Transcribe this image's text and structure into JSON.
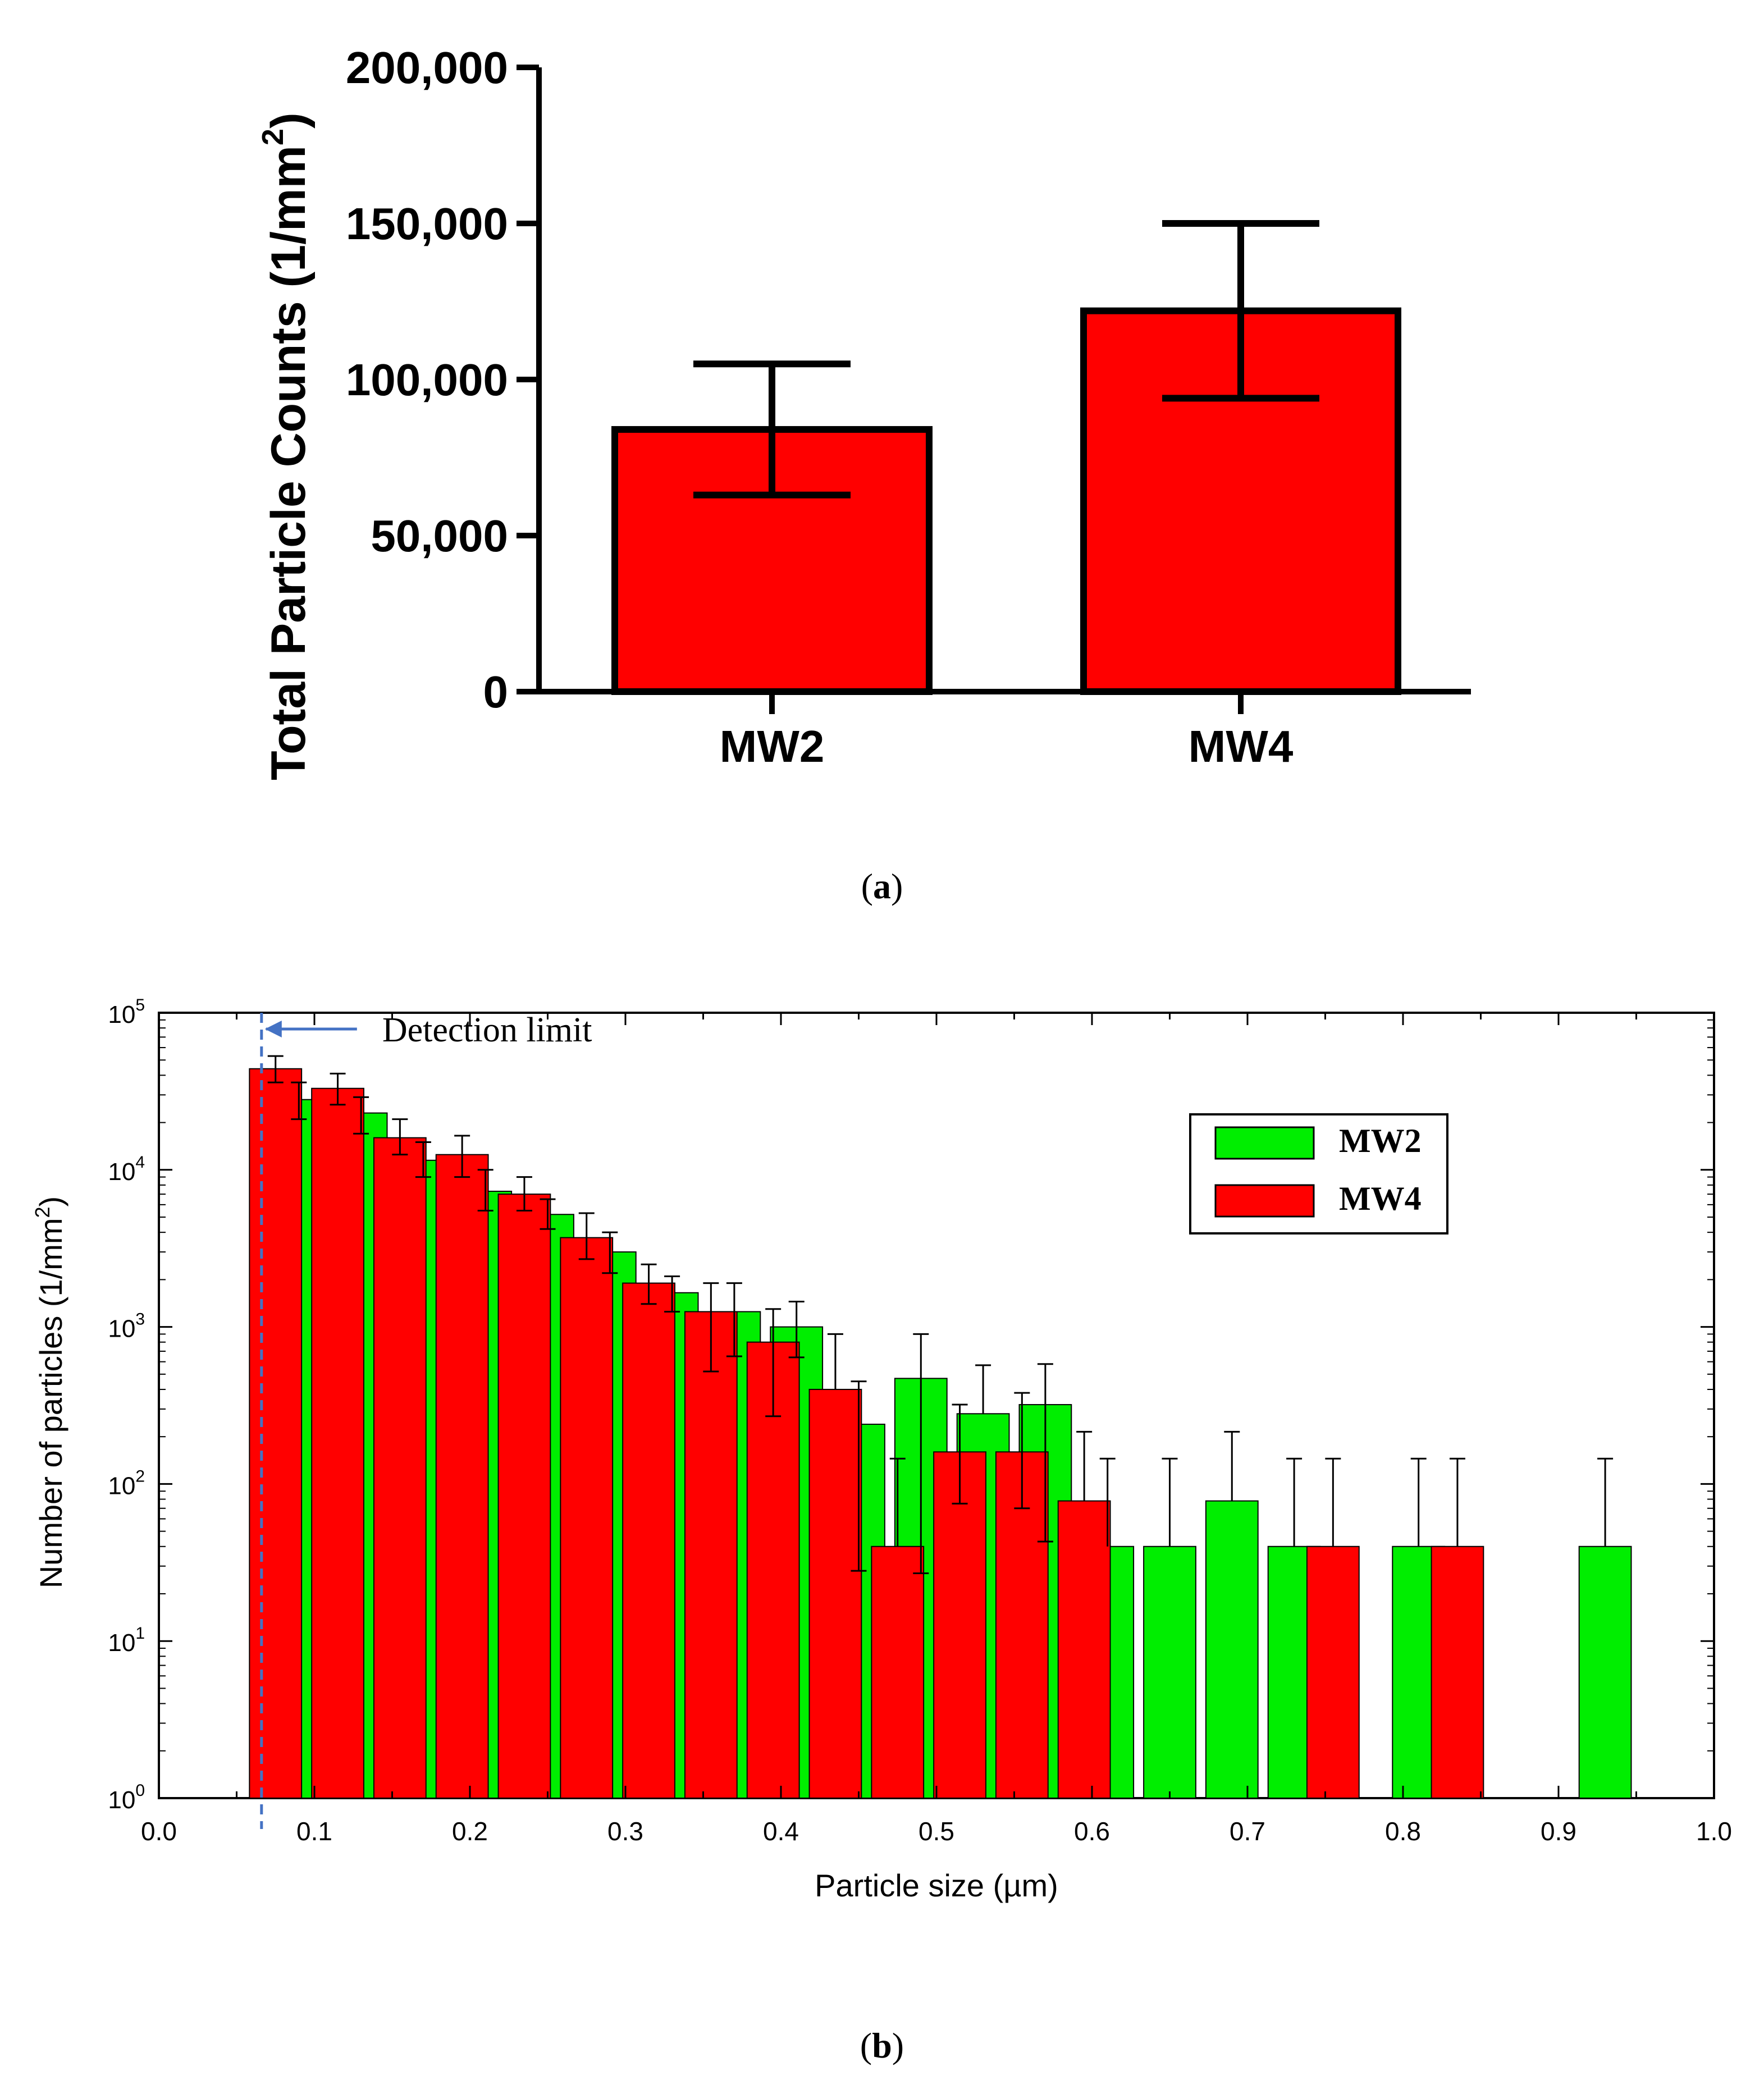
{
  "colors": {
    "mw2": "#00ee00",
    "mw4": "#ff0000",
    "axis": "#000000",
    "detection": "#4472c4"
  },
  "panel_a": {
    "caption": "(a)",
    "caption_letter": "a"
  },
  "panel_b": {
    "caption": "(b)",
    "caption_letter": "b",
    "annotation": "Detection limit"
  },
  "chart_data": [
    {
      "type": "bar",
      "title": "",
      "xlabel": "",
      "ylabel": "Total Particle Counts (1/mm2)",
      "ylabel_main": "Total Particle Counts (1/mm",
      "ylabel_sup": "2",
      "ylabel_close": ")",
      "categories": [
        "MW2",
        "MW4"
      ],
      "values": [
        84000,
        122000
      ],
      "errors": [
        21000,
        28000
      ],
      "ylim": [
        0,
        200000
      ],
      "yticks": [
        0,
        50000,
        100000,
        150000,
        200000
      ],
      "ytick_labels": [
        "0",
        "50,000",
        "100,000",
        "150,000",
        "200,000"
      ],
      "grid": false
    },
    {
      "type": "bar",
      "title": "",
      "xlabel": "Particle size (µm)",
      "ylabel": "Number of particles (1/mm2)",
      "ylabel_main": "Number of particles (1/mm",
      "ylabel_sup": "2",
      "ylabel_close": ")",
      "yscale": "log",
      "xlim": [
        0.0,
        1.0
      ],
      "ylim": [
        1,
        100000
      ],
      "xticks": [
        0.0,
        0.1,
        0.2,
        0.3,
        0.4,
        0.5,
        0.6,
        0.7,
        0.8,
        0.9,
        1.0
      ],
      "xtick_labels": [
        "0.0",
        "0.1",
        "0.2",
        "0.3",
        "0.4",
        "0.5",
        "0.6",
        "0.7",
        "0.8",
        "0.9",
        "1.0"
      ],
      "ytick_base": "10",
      "ytick_exponents": [
        "0",
        "1",
        "2",
        "3",
        "4",
        "5"
      ],
      "detection_limit": 0.066,
      "legend": {
        "position": "top-right",
        "entries": [
          "MW2",
          "MW4"
        ]
      },
      "series": [
        {
          "name": "MW2",
          "x": [
            0.09,
            0.13,
            0.17,
            0.21,
            0.25,
            0.29,
            0.33,
            0.37,
            0.41,
            0.45,
            0.49,
            0.53,
            0.57,
            0.61,
            0.65,
            0.69,
            0.73,
            0.81,
            0.93
          ],
          "values": [
            28000,
            23000,
            11500,
            7300,
            5200,
            3000,
            1650,
            1250,
            1000,
            240,
            470,
            280,
            320,
            40,
            40,
            78,
            40,
            40,
            40
          ],
          "err_low": [
            21000,
            17000,
            9000,
            5500,
            4200,
            2200,
            1250,
            650,
            640,
            28,
            27,
            null,
            43,
            null,
            null,
            null,
            null,
            null,
            null
          ],
          "err_high": [
            36000,
            29000,
            15000,
            10000,
            6500,
            4000,
            2100,
            1900,
            1450,
            450,
            900,
            570,
            580,
            145,
            145,
            215,
            145,
            145,
            145
          ]
        },
        {
          "name": "MW4",
          "x": [
            0.075,
            0.115,
            0.155,
            0.195,
            0.235,
            0.275,
            0.315,
            0.355,
            0.395,
            0.435,
            0.475,
            0.515,
            0.555,
            0.595,
            0.755,
            0.835
          ],
          "values": [
            44000,
            33000,
            16000,
            12500,
            7000,
            3700,
            1900,
            1250,
            800,
            400,
            40,
            160,
            160,
            78,
            40,
            40
          ],
          "err_low": [
            36000,
            26000,
            12500,
            9000,
            5500,
            2700,
            1400,
            520,
            270,
            null,
            null,
            75,
            70,
            null,
            null,
            null
          ],
          "err_high": [
            53000,
            41000,
            21000,
            16500,
            9000,
            5300,
            2500,
            1900,
            1300,
            900,
            145,
            320,
            380,
            215,
            145,
            145
          ]
        }
      ]
    }
  ]
}
